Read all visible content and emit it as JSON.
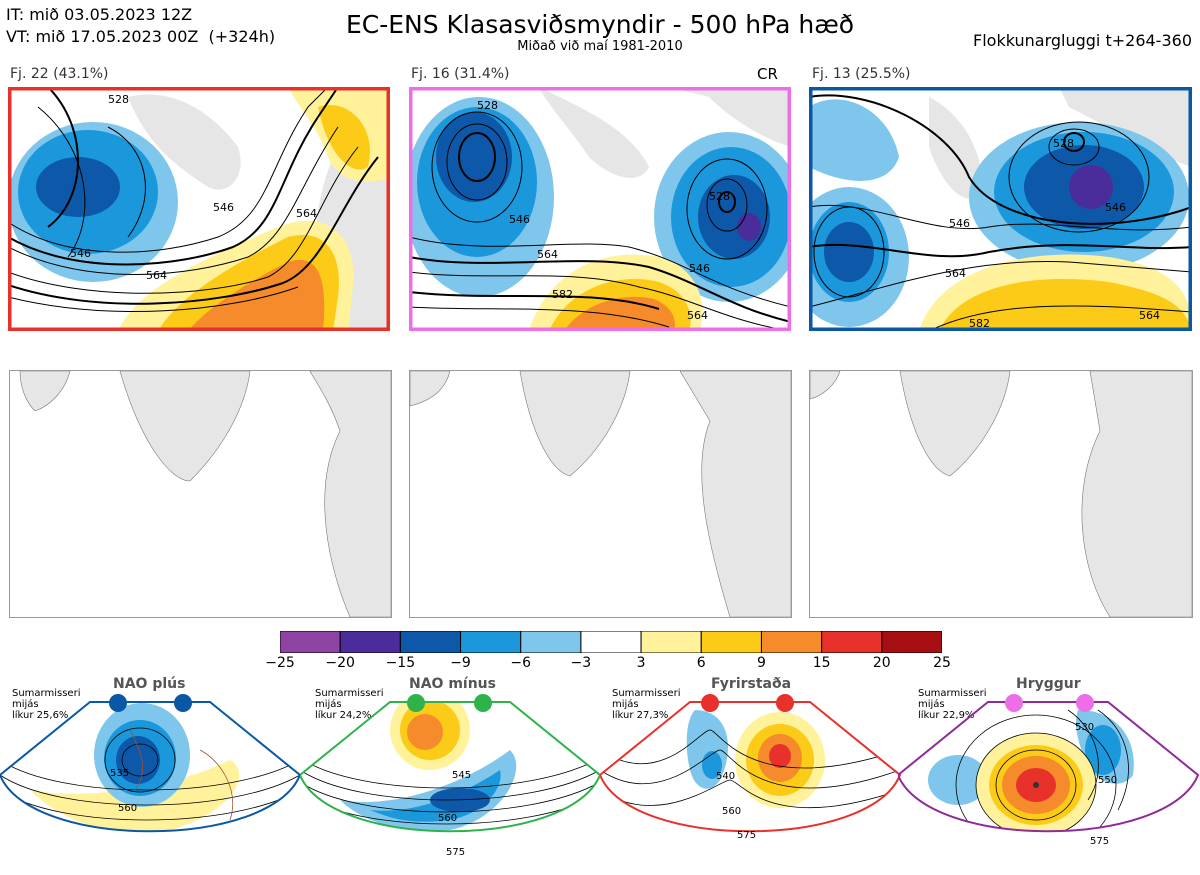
{
  "header": {
    "it_line": "IT: mið 03.05.2023 12Z",
    "vt_line": "VT: mið 17.05.2023 00Z  (+324h)",
    "title": "EC-ENS Klasasviðsmyndir - 500 hPa hæð",
    "subtitle": "Miðað við maí 1981-2010",
    "window": "Flokkunargluggi t+264-360"
  },
  "clusters": [
    {
      "label": "Fj. 22 (43.1%)",
      "tag": "",
      "border": "#e8312a",
      "contours": [
        "528",
        "546",
        "546",
        "564",
        "564"
      ]
    },
    {
      "label": "Fj. 16 (31.4%)",
      "tag": "CR",
      "border": "#ee6ee8",
      "contours": [
        "528",
        "546",
        "564",
        "582",
        "528",
        "546",
        "564"
      ]
    },
    {
      "label": "Fj. 13 (25.5%)",
      "tag": "",
      "border": "#0a57a5",
      "contours": [
        "528",
        "546",
        "546",
        "564",
        "582",
        "564"
      ]
    }
  ],
  "colorbar": {
    "ticks": [
      "−25",
      "−20",
      "−15",
      "−9",
      "−6",
      "−3",
      "3",
      "6",
      "9",
      "15",
      "20",
      "25"
    ],
    "colors": [
      "#8e44a3",
      "#4a2c9a",
      "#0d58a8",
      "#1a98db",
      "#7ec6ec",
      "#ffffff",
      "#fff29a",
      "#fccb17",
      "#f58b2a",
      "#e8312a",
      "#a70e12"
    ]
  },
  "climatology": [
    {
      "name": "NAO plús",
      "note": "Sumarmisseri\nmijás\nlíkur 25,6%",
      "dot": "#0a57a5",
      "frame": "#0a57a5",
      "contours": [
        "535",
        "560"
      ]
    },
    {
      "name": "NAO mínus",
      "note": "Sumarmisseri\nmijás\nlíkur 24,2%",
      "dot": "#2db34a",
      "frame": "#2db34a",
      "contours": [
        "545",
        "560",
        "575"
      ]
    },
    {
      "name": "Fyrirstaða",
      "note": "Sumarmisseri\nmijás\nlíkur 27,3%",
      "dot": "#e8312a",
      "frame": "#e8312a",
      "contours": [
        "540",
        "560",
        "575"
      ]
    },
    {
      "name": "Hryggur",
      "note": "Sumarmisseri\nmijás\nlíkur 22,9%",
      "dot": "#ee6ee8",
      "frame": "#8e2a9a",
      "contours": [
        "530",
        "550",
        "575"
      ]
    }
  ]
}
